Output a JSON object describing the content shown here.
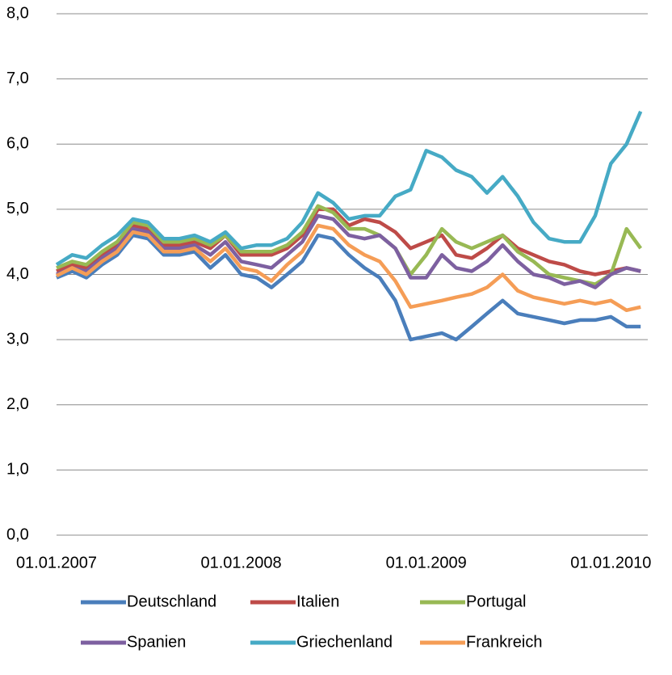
{
  "chart_data": {
    "type": "line",
    "x": [
      "01.01.2007",
      "01.02.2007",
      "01.03.2007",
      "01.04.2007",
      "01.05.2007",
      "01.06.2007",
      "01.07.2007",
      "01.08.2007",
      "01.09.2007",
      "01.10.2007",
      "01.11.2007",
      "01.12.2007",
      "01.01.2008",
      "01.02.2008",
      "01.03.2008",
      "01.04.2008",
      "01.05.2008",
      "01.06.2008",
      "01.07.2008",
      "01.08.2008",
      "01.09.2008",
      "01.10.2008",
      "01.11.2008",
      "01.12.2008",
      "01.01.2009",
      "01.02.2009",
      "01.03.2009",
      "01.04.2009",
      "01.05.2009",
      "01.06.2009",
      "01.07.2009",
      "01.08.2009",
      "01.09.2009",
      "01.10.2009",
      "01.11.2009",
      "01.12.2009",
      "01.01.2010",
      "01.02.2010",
      "01.03.2010"
    ],
    "series": [
      {
        "name": "Deutschland",
        "color": "#4a7ebb",
        "values": [
          3.95,
          4.05,
          3.95,
          4.15,
          4.3,
          4.6,
          4.55,
          4.3,
          4.3,
          4.35,
          4.1,
          4.3,
          4.0,
          3.95,
          3.8,
          4.0,
          4.2,
          4.6,
          4.55,
          4.3,
          4.1,
          3.95,
          3.6,
          3.0,
          3.05,
          3.1,
          3.0,
          3.2,
          3.4,
          3.6,
          3.4,
          3.35,
          3.3,
          3.25,
          3.3,
          3.3,
          3.35,
          3.2,
          3.2
        ]
      },
      {
        "name": "Italien",
        "color": "#be4b48",
        "values": [
          4.05,
          4.15,
          4.1,
          4.3,
          4.45,
          4.75,
          4.7,
          4.45,
          4.45,
          4.5,
          4.4,
          4.6,
          4.3,
          4.3,
          4.3,
          4.4,
          4.6,
          5.0,
          5.0,
          4.75,
          4.85,
          4.8,
          4.65,
          4.4,
          4.5,
          4.6,
          4.3,
          4.25,
          4.4,
          4.6,
          4.4,
          4.3,
          4.2,
          4.15,
          4.05,
          4.0,
          4.05,
          4.1,
          4.05
        ]
      },
      {
        "name": "Portugal",
        "color": "#98b954",
        "values": [
          4.1,
          4.2,
          4.15,
          4.35,
          4.5,
          4.8,
          4.75,
          4.5,
          4.5,
          4.55,
          4.45,
          4.6,
          4.35,
          4.35,
          4.35,
          4.45,
          4.65,
          5.05,
          4.95,
          4.7,
          4.7,
          4.6,
          4.4,
          4.0,
          4.3,
          4.7,
          4.5,
          4.4,
          4.5,
          4.6,
          4.35,
          4.2,
          4.0,
          3.95,
          3.9,
          3.85,
          4.0,
          4.7,
          4.4
        ]
      },
      {
        "name": "Spanien",
        "color": "#7d60a0",
        "values": [
          4.0,
          4.1,
          4.05,
          4.25,
          4.4,
          4.7,
          4.65,
          4.4,
          4.4,
          4.45,
          4.3,
          4.5,
          4.2,
          4.15,
          4.1,
          4.3,
          4.5,
          4.9,
          4.85,
          4.6,
          4.55,
          4.6,
          4.4,
          3.95,
          3.95,
          4.3,
          4.1,
          4.05,
          4.2,
          4.45,
          4.2,
          4.0,
          3.95,
          3.85,
          3.9,
          3.8,
          4.0,
          4.1,
          4.05
        ]
      },
      {
        "name": "Griechenland",
        "color": "#46aac5",
        "values": [
          4.15,
          4.3,
          4.25,
          4.45,
          4.6,
          4.85,
          4.8,
          4.55,
          4.55,
          4.6,
          4.5,
          4.65,
          4.4,
          4.45,
          4.45,
          4.55,
          4.8,
          5.25,
          5.1,
          4.85,
          4.9,
          4.9,
          5.2,
          5.3,
          5.9,
          5.8,
          5.6,
          5.5,
          5.25,
          5.5,
          5.2,
          4.8,
          4.55,
          4.5,
          4.5,
          4.9,
          5.7,
          6.0,
          6.5
        ]
      },
      {
        "name": "Frankreich",
        "color": "#f59d56",
        "values": [
          3.98,
          4.1,
          4.0,
          4.2,
          4.35,
          4.65,
          4.6,
          4.35,
          4.35,
          4.4,
          4.2,
          4.4,
          4.1,
          4.05,
          3.9,
          4.15,
          4.35,
          4.75,
          4.7,
          4.45,
          4.3,
          4.2,
          3.9,
          3.5,
          3.55,
          3.6,
          3.65,
          3.7,
          3.8,
          4.0,
          3.75,
          3.65,
          3.6,
          3.55,
          3.6,
          3.55,
          3.6,
          3.45,
          3.5
        ]
      }
    ],
    "xlim": [
      "01.01.2007",
      "15.03.2010"
    ],
    "xticks": [
      "01.01.2007",
      "01.01.2008",
      "01.01.2009",
      "01.01.2010"
    ],
    "ylim": [
      0,
      8
    ],
    "yticks": [
      {
        "value": 0,
        "label": "0,0"
      },
      {
        "value": 1,
        "label": "1,0"
      },
      {
        "value": 2,
        "label": "2,0"
      },
      {
        "value": 3,
        "label": "3,0"
      },
      {
        "value": 4,
        "label": "4,0"
      },
      {
        "value": 5,
        "label": "5,0"
      },
      {
        "value": 6,
        "label": "6,0"
      },
      {
        "value": 7,
        "label": "7,0"
      },
      {
        "value": 8,
        "label": "8,0"
      }
    ],
    "grid": true,
    "legend": "bottom"
  }
}
